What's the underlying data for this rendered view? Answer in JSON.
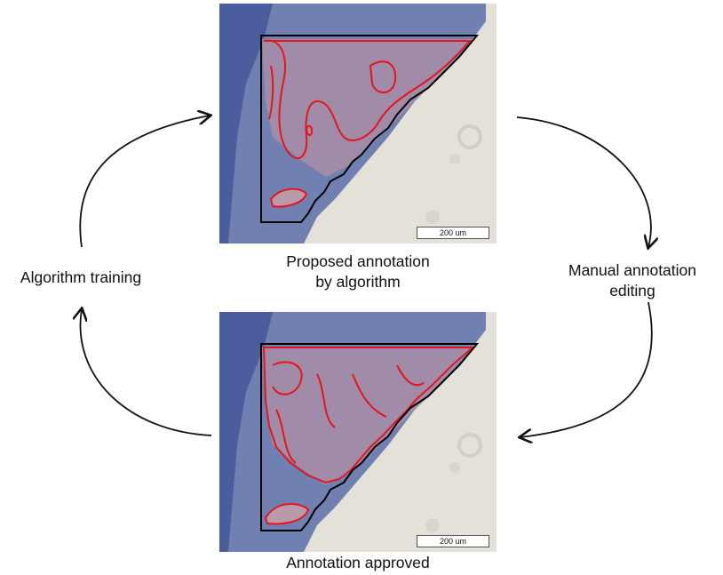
{
  "steps": {
    "proposed": {
      "line1": "Proposed annotation",
      "line2": "by algorithm",
      "scale": "200 um"
    },
    "manual": {
      "line1": "Manual annotation",
      "line2": "editing"
    },
    "approved": {
      "line1": "Annotation approved",
      "scale": "200 um"
    },
    "training": {
      "line1": "Algorithm training"
    }
  },
  "colors": {
    "tissue_blue": "#5b6ea8",
    "tumor_region": "#b89aa8",
    "annotation_outline": "#e8141b",
    "roi_boundary": "#000000",
    "background": "#e3e1d8"
  }
}
